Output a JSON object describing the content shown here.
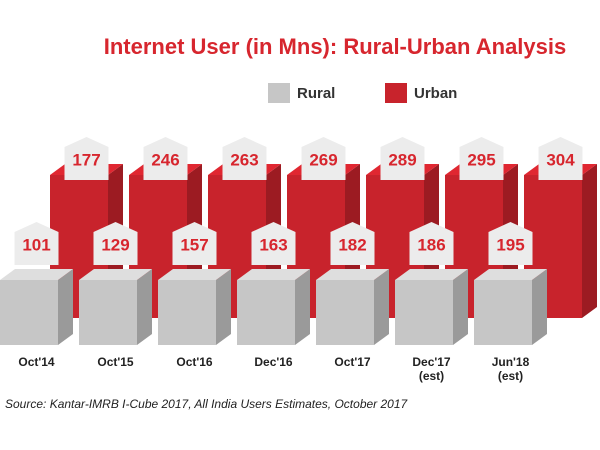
{
  "chart_data": {
    "type": "bar3d",
    "title": "Internet User (in Mns): Rural-Urban Analysis",
    "source": "Source: Kantar-IMRB I-Cube 2017, All India Users Estimates, October 2017",
    "categories": [
      "Oct'14",
      "Oct'15",
      "Oct'16",
      "Dec'16",
      "Oct'17",
      "Dec'17 (est)",
      "Jun'18 (est)"
    ],
    "series": [
      {
        "name": "Rural",
        "color": "#c6c6c6",
        "values": [
          101,
          129,
          157,
          163,
          182,
          186,
          195
        ]
      },
      {
        "name": "Urban",
        "color": "#c8232c",
        "values": [
          177,
          246,
          263,
          269,
          289,
          295,
          304
        ]
      }
    ],
    "label_color": "#d7262e"
  }
}
